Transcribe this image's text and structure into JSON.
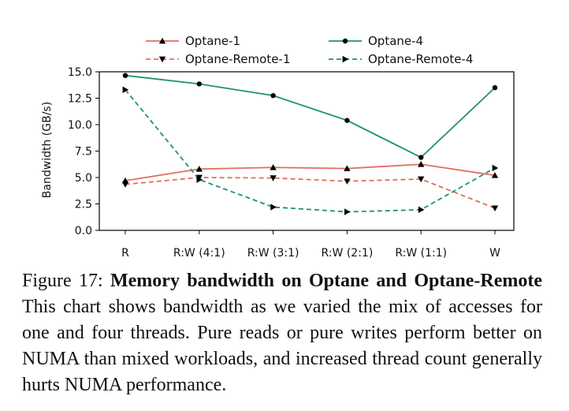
{
  "chart_data": {
    "type": "line",
    "title": "",
    "xlabel": "",
    "ylabel": "Bandwidth (GB/s)",
    "categories": [
      "R",
      "R:W (4:1)",
      "R:W (3:1)",
      "R:W (2:1)",
      "R:W (1:1)",
      "W"
    ],
    "ylim": [
      0,
      15
    ],
    "yticks": [
      "0.0",
      "2.5",
      "5.0",
      "7.5",
      "10.0",
      "12.5",
      "15.0"
    ],
    "grid": false,
    "legend_placement": "top, above plot, two columns",
    "series": [
      {
        "name": "Optane-1",
        "values": [
          4.7,
          5.8,
          5.95,
          5.85,
          6.25,
          5.2
        ],
        "color": "#e0705a",
        "style": "solid",
        "marker": "triangle-up"
      },
      {
        "name": "Optane-Remote-1",
        "values": [
          4.35,
          5.0,
          4.95,
          4.65,
          4.85,
          2.1
        ],
        "color": "#e0705a",
        "style": "dashed",
        "marker": "triangle-down"
      },
      {
        "name": "Optane-4",
        "values": [
          14.65,
          13.85,
          12.75,
          10.4,
          6.9,
          13.5
        ],
        "color": "#1e9370",
        "style": "solid",
        "marker": "circle"
      },
      {
        "name": "Optane-Remote-4",
        "values": [
          13.3,
          4.8,
          2.2,
          1.75,
          1.95,
          5.9
        ],
        "color": "#1e9370",
        "style": "dashed",
        "marker": "triangle-right"
      }
    ]
  },
  "caption": {
    "prefix": "Figure 17: ",
    "bold": "Memory bandwidth on Optane and Optane-Remote",
    "text": " This chart shows bandwidth as we varied the mix of accesses for one and four threads. Pure reads or pure writes perform better on NUMA than mixed workloads, and increased thread count generally hurts NUMA performance."
  }
}
